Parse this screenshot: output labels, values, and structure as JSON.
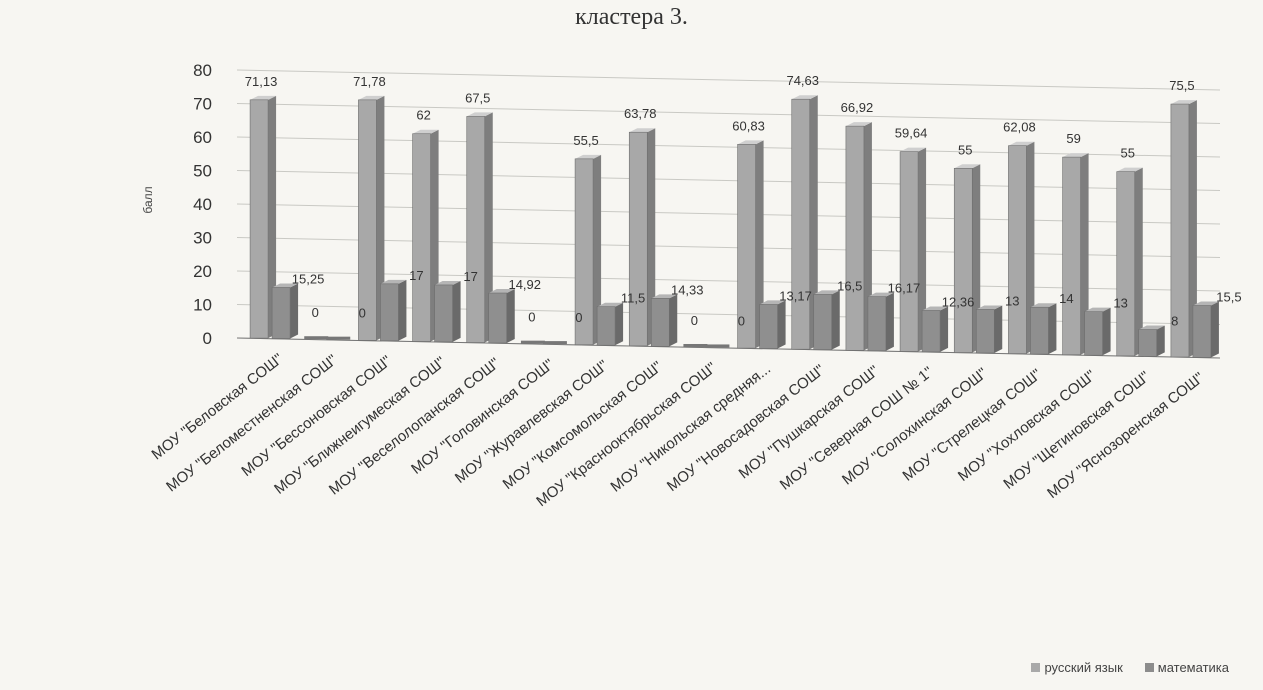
{
  "title": "кластера 3.",
  "chart_data": {
    "type": "bar",
    "ylabel": "балл",
    "ylim": [
      0,
      80
    ],
    "yticks": [
      0,
      10,
      20,
      30,
      40,
      50,
      60,
      70,
      80
    ],
    "grid": true,
    "legend_position": "bottom-right",
    "categories": [
      "МОУ \"Беловская СОШ\"",
      "МОУ \"Беломестненская СОШ\"",
      "МОУ \"Бессоновская СОШ\"",
      "МОУ \"Ближнеигумеская СОШ\"",
      "МОУ \"Веселолопанская СОШ\"",
      "МОУ \"Головинская СОШ\"",
      "МОУ \"Журавлевская СОШ\"",
      "МОУ \"Комсомольская СОШ\"",
      "МОУ \"Краснооктябрьская СОШ\"",
      "МОУ \"Никольская средняя...",
      "МОУ \"Новосадовская СОШ\"",
      "МОУ \"Пушкарская СОШ\"",
      "МОУ \"Северная СОШ № 1\"",
      "МОУ \"Солохинская СОШ\"",
      "МОУ \"Стрелецкая СОШ\"",
      "МОУ \"Хохловская СОШ\"",
      "МОУ \"Щетиновская СОШ\"",
      "МОУ \"Яснозоренская СОШ\""
    ],
    "series": [
      {
        "name": "русский язык",
        "color": "#a9a9a9",
        "values": [
          71.13,
          0,
          71.78,
          62,
          67.5,
          0,
          55.5,
          63.78,
          0,
          60.83,
          74.63,
          66.92,
          59.64,
          55,
          62.08,
          59,
          55,
          75.5
        ],
        "labels": [
          "71,13",
          "0",
          "71,78",
          "62",
          "67,5",
          "0",
          "55,5",
          "63,78",
          "0",
          "60,83",
          "74,63",
          "66,92",
          "59,64",
          "55",
          "62,08",
          "59",
          "55",
          "75,5"
        ]
      },
      {
        "name": "математика",
        "color": "#8c8c8c",
        "values": [
          15.25,
          0,
          17,
          17,
          14.92,
          0,
          11.5,
          14.33,
          0,
          13.17,
          16.5,
          16.17,
          12.36,
          13,
          14,
          13,
          8,
          15.5
        ],
        "labels": [
          "15,25",
          "0",
          "17",
          "17",
          "14,92",
          "0",
          "11,5",
          "14,33",
          "0",
          "13,17",
          "16,5",
          "16,17",
          "12,36",
          "13",
          "14",
          "13",
          "8",
          "15,5"
        ]
      }
    ]
  }
}
